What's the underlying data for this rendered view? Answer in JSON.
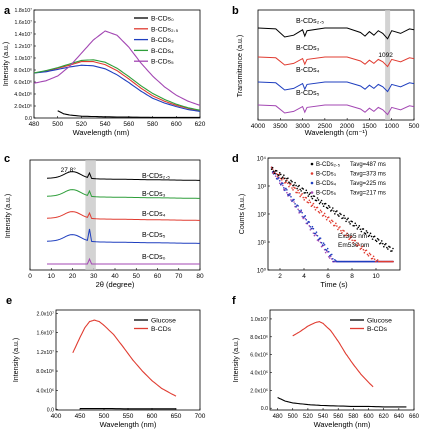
{
  "chart_data": [
    {
      "panel": "a",
      "type": "line",
      "xlabel": "Wavelength (nm)",
      "ylabel": "Intensity (a.u.)",
      "xlim": [
        480,
        620
      ],
      "ylim": [
        0,
        18000000
      ],
      "xticks": [
        "480",
        "500",
        "520",
        "540",
        "560",
        "580",
        "600",
        "620"
      ],
      "yticks": [
        "0.0",
        "2.0x10⁶",
        "4.0x10⁶",
        "6.0x10⁶",
        "8.0x10⁶",
        "1.0x10⁷",
        "1.2x10⁷",
        "1.4x10⁷",
        "1.6x10⁷",
        "1.8x10⁷"
      ],
      "legend_position": "top-right",
      "series": [
        {
          "name": "B-CDs₀",
          "color": "#000000",
          "x": [
            500,
            505,
            510,
            520,
            530,
            540,
            560,
            580,
            600,
            620
          ],
          "y": [
            1200000,
            700000,
            500000,
            300000,
            250000,
            200000,
            150000,
            100000,
            100000,
            100000
          ]
        },
        {
          "name": "B-CDs₂.₅",
          "color": "#e03c31",
          "x": [
            480,
            490,
            500,
            510,
            520,
            530,
            540,
            550,
            560,
            570,
            580,
            590,
            600,
            610,
            620
          ],
          "y": [
            7500000,
            7800000,
            8300000,
            8800000,
            9400000,
            9400000,
            8900000,
            7900000,
            6500000,
            5000000,
            3700000,
            2800000,
            2100000,
            1600000,
            1200000
          ]
        },
        {
          "name": "B-CDs₃",
          "color": "#1f3fbf",
          "x": [
            480,
            490,
            500,
            510,
            520,
            530,
            540,
            550,
            560,
            570,
            580,
            590,
            600,
            610,
            620
          ],
          "y": [
            7500000,
            7700000,
            8100000,
            8500000,
            8800000,
            8700000,
            8200000,
            7200000,
            5900000,
            4500000,
            3300000,
            2500000,
            1900000,
            1400000,
            1100000
          ]
        },
        {
          "name": "B-CDs₄",
          "color": "#2e9e3a",
          "x": [
            480,
            490,
            500,
            510,
            520,
            530,
            540,
            550,
            560,
            570,
            580,
            590,
            600,
            610,
            620
          ],
          "y": [
            7500000,
            7900000,
            8400000,
            9000000,
            9600000,
            9700000,
            9300000,
            8300000,
            6900000,
            5400000,
            4100000,
            3100000,
            2300000,
            1700000,
            1300000
          ]
        },
        {
          "name": "B-CDs₅",
          "color": "#a347b3",
          "x": [
            480,
            490,
            500,
            510,
            520,
            530,
            540,
            550,
            560,
            570,
            580,
            590,
            600,
            610,
            620
          ],
          "y": [
            5800000,
            6200000,
            7000000,
            8600000,
            10800000,
            13000000,
            14500000,
            13800000,
            11800000,
            9200000,
            7000000,
            5200000,
            3800000,
            2800000,
            2100000
          ]
        }
      ]
    },
    {
      "panel": "b",
      "type": "line",
      "xlabel": "Wavelength (cm⁻¹)",
      "ylabel": "Transmittance (a.u.)",
      "xlim": [
        4000,
        500
      ],
      "xticks": [
        "4000",
        "3500",
        "3000",
        "2500",
        "2000",
        "1500",
        "1000",
        "500"
      ],
      "annotation": "1092",
      "series": [
        {
          "name": "B-CDs₂.₅",
          "color": "#000000"
        },
        {
          "name": "B-CDs₃",
          "color": "#e03c31"
        },
        {
          "name": "B-CDs₄",
          "color": "#1f3fbf"
        },
        {
          "name": "B-CDs₅",
          "color": "#a347b3"
        }
      ]
    },
    {
      "panel": "c",
      "type": "line",
      "xlabel": "2θ (degree)",
      "ylabel": "Intensity (a.u.)",
      "xlim": [
        0,
        80
      ],
      "xticks": [
        "0",
        "10",
        "20",
        "30",
        "40",
        "50",
        "60",
        "70",
        "80"
      ],
      "annotation": "27.8°",
      "series": [
        {
          "name": "B-CDs₂.₅",
          "color": "#000000"
        },
        {
          "name": "B-CDs₃",
          "color": "#2e9e3a"
        },
        {
          "name": "B-CDs₄",
          "color": "#e03c31"
        },
        {
          "name": "B-CDs₅",
          "color": "#1f3fbf"
        },
        {
          "name": "B-CDs₀",
          "color": "#a347b3"
        }
      ]
    },
    {
      "panel": "d",
      "type": "scatter",
      "xlabel": "Time (s)",
      "ylabel": "Counts (a.u.)",
      "xlim": [
        1,
        12
      ],
      "xticks": [
        "2",
        "4",
        "6",
        "8",
        "10"
      ],
      "yscale": "log",
      "yticks": [
        "10⁰",
        "10¹",
        "10²",
        "10³",
        "10⁴"
      ],
      "legend_position": "top-right",
      "notes": [
        "Ex365 nm",
        "Em530 nm"
      ],
      "series": [
        {
          "name": "B-CDs₂.₅",
          "tavg": "Tavg=487 ms",
          "color": "#000000"
        },
        {
          "name": "B-CDs₃",
          "tavg": "Tavg=373 ms",
          "color": "#e03c31"
        },
        {
          "name": "B-CDs₄",
          "tavg": "Tavg=225 ms",
          "color": "#1f3fbf"
        },
        {
          "name": "B-CDs₅",
          "tavg": "Tavg=217 ms",
          "color": "#a347b3"
        }
      ]
    },
    {
      "panel": "e",
      "type": "line",
      "xlabel": "Wavelength (nm)",
      "ylabel": "Intensity (a.u.)",
      "xlim": [
        400,
        700
      ],
      "ylim": [
        -100000,
        20700000
      ],
      "xticks": [
        "400",
        "450",
        "500",
        "550",
        "600",
        "650",
        "700"
      ],
      "yticks": [
        "0.0",
        "4.0x10⁶",
        "8.0x10⁶",
        "1.2x10⁷",
        "1.6x10⁷",
        "2.0x10⁷"
      ],
      "legend_position": "top-right",
      "series": [
        {
          "name": "Glucose",
          "color": "#000000",
          "x": [
            450,
            475,
            500,
            550,
            600,
            650
          ],
          "y": [
            200000,
            200000,
            200000,
            150000,
            150000,
            150000
          ]
        },
        {
          "name": "B-CDs",
          "color": "#e03c31",
          "x": [
            435,
            450,
            460,
            470,
            480,
            490,
            500,
            520,
            540,
            560,
            580,
            600,
            620,
            640,
            650
          ],
          "y": [
            11800000,
            15000000,
            17000000,
            18300000,
            18600000,
            18300000,
            17500000,
            15600000,
            13000000,
            10300000,
            8000000,
            6000000,
            4400000,
            3300000,
            2800000
          ]
        }
      ]
    },
    {
      "panel": "f",
      "type": "line",
      "xlabel": "Wavelength (nm)",
      "ylabel": "Intensity (a.u.)",
      "xlim": [
        470,
        660
      ],
      "ylim": [
        -200000,
        11000000
      ],
      "xticks": [
        "480",
        "500",
        "520",
        "540",
        "560",
        "580",
        "600",
        "620",
        "640",
        "660"
      ],
      "yticks": [
        "0.0",
        "2.0x10⁶",
        "4.0x10⁶",
        "6.0x10⁶",
        "8.0x10⁶",
        "1.0x10⁷"
      ],
      "legend_position": "top-right",
      "series": [
        {
          "name": "Glucose",
          "color": "#000000",
          "x": [
            480,
            490,
            500,
            520,
            540,
            560,
            580,
            600,
            620,
            640,
            650
          ],
          "y": [
            1200000,
            800000,
            600000,
            400000,
            300000,
            250000,
            200000,
            200000,
            150000,
            150000,
            150000
          ]
        },
        {
          "name": "B-CDs",
          "color": "#e03c31",
          "x": [
            500,
            510,
            520,
            530,
            535,
            540,
            550,
            560,
            570,
            580,
            590,
            600,
            606
          ],
          "y": [
            8100000,
            8600000,
            9200000,
            9600000,
            9700000,
            9500000,
            8700000,
            7500000,
            6100000,
            4900000,
            3800000,
            2900000,
            2400000
          ]
        }
      ]
    }
  ]
}
